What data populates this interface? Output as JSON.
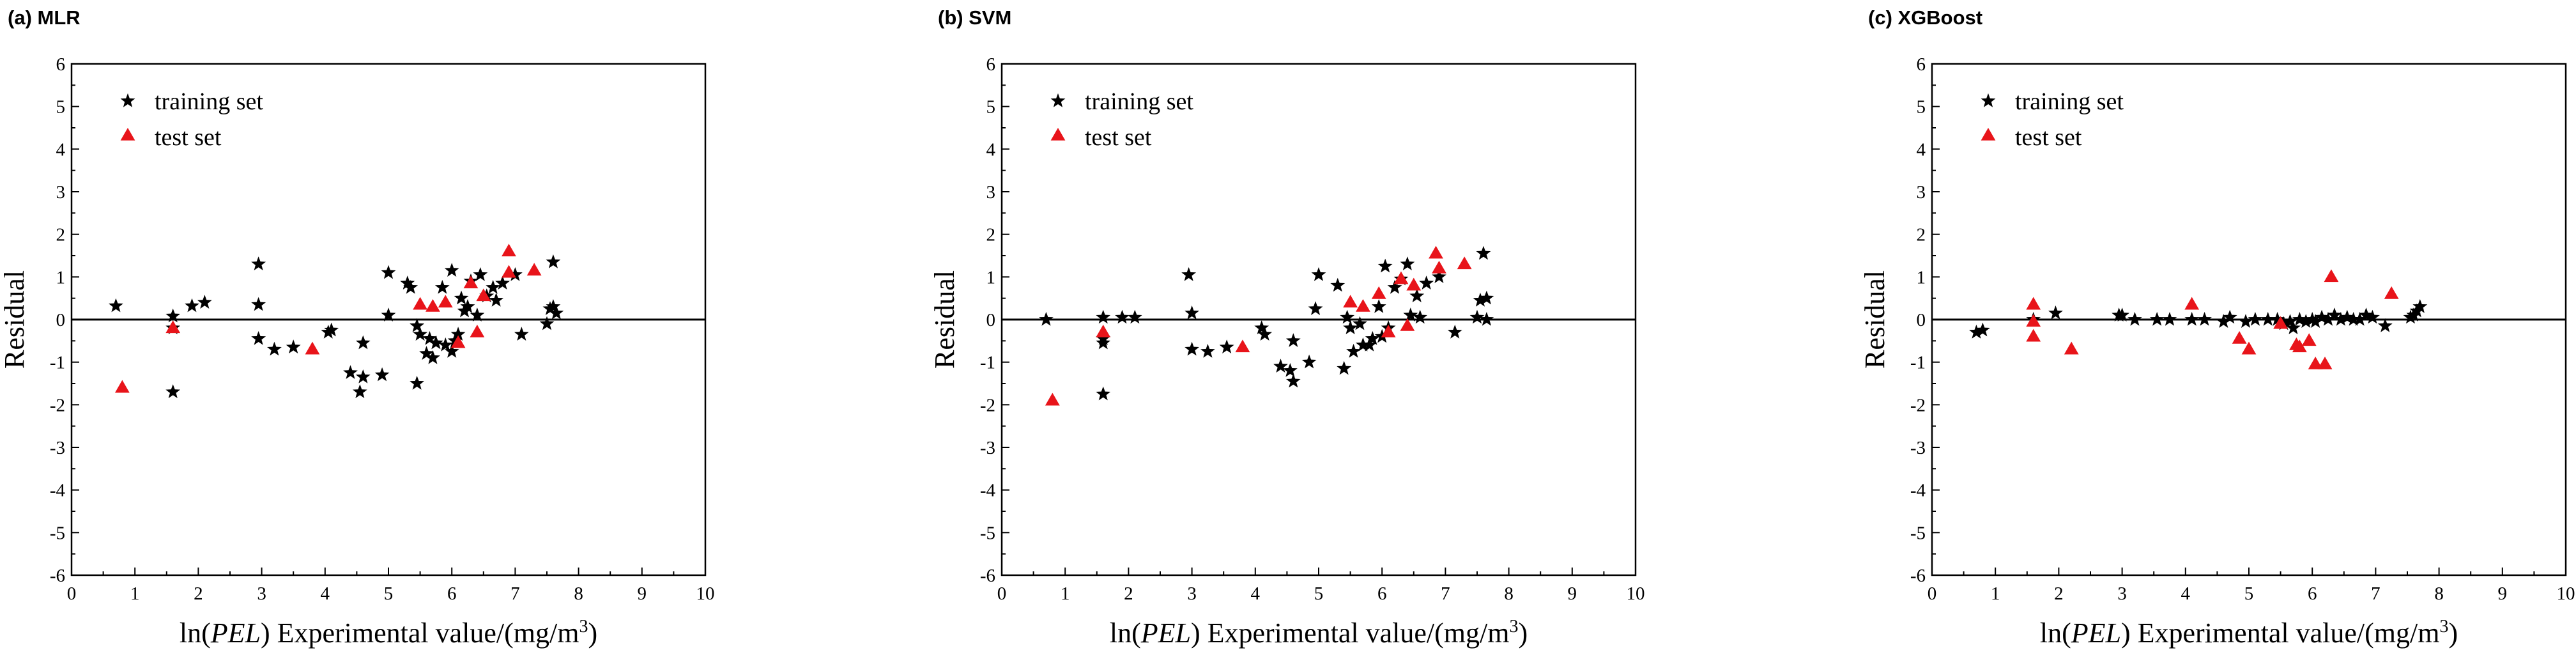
{
  "colors": {
    "training": "#000000",
    "test": "#e8141a"
  },
  "chart_data": [
    {
      "type": "scatter",
      "title": "(a) MLR",
      "xlabel": "ln(PEL) Experimental value/(mg/m3)",
      "ylabel": "Residual",
      "xlim": [
        0,
        10
      ],
      "ylim": [
        -6,
        6
      ],
      "xticks": [
        "0",
        "1",
        "2",
        "3",
        "4",
        "5",
        "6",
        "7",
        "8",
        "9",
        "10"
      ],
      "yticks": [
        "-6",
        "-5",
        "-4",
        "-3",
        "-2",
        "-1",
        "0",
        "1",
        "2",
        "3",
        "4",
        "5",
        "6"
      ],
      "legend": [
        "training set",
        "test set"
      ],
      "series": [
        {
          "name": "training set",
          "marker": "star",
          "points": [
            [
              0.7,
              0.32
            ],
            [
              1.6,
              0.08
            ],
            [
              1.6,
              -0.2
            ],
            [
              1.6,
              -1.7
            ],
            [
              1.9,
              0.32
            ],
            [
              2.1,
              0.4
            ],
            [
              2.95,
              1.3
            ],
            [
              2.95,
              0.35
            ],
            [
              2.95,
              -0.45
            ],
            [
              3.2,
              -0.7
            ],
            [
              3.5,
              -0.65
            ],
            [
              4.05,
              -0.3
            ],
            [
              4.1,
              -0.25
            ],
            [
              4.4,
              -1.25
            ],
            [
              4.55,
              -1.7
            ],
            [
              4.6,
              -0.55
            ],
            [
              4.6,
              -1.35
            ],
            [
              4.9,
              -1.3
            ],
            [
              5.0,
              1.1
            ],
            [
              5.0,
              0.1
            ],
            [
              5.3,
              0.85
            ],
            [
              5.35,
              0.75
            ],
            [
              5.45,
              -0.15
            ],
            [
              5.5,
              -0.35
            ],
            [
              5.45,
              -1.5
            ],
            [
              5.6,
              -0.8
            ],
            [
              5.65,
              -0.45
            ],
            [
              5.7,
              -0.9
            ],
            [
              5.75,
              -0.55
            ],
            [
              5.85,
              0.75
            ],
            [
              5.9,
              -0.6
            ],
            [
              6.0,
              -0.75
            ],
            [
              6.0,
              1.15
            ],
            [
              6.05,
              -0.5
            ],
            [
              6.1,
              -0.35
            ],
            [
              6.15,
              0.5
            ],
            [
              6.2,
              0.2
            ],
            [
              6.25,
              0.3
            ],
            [
              6.3,
              0.9
            ],
            [
              6.4,
              0.1
            ],
            [
              6.45,
              1.05
            ],
            [
              6.55,
              0.55
            ],
            [
              6.65,
              0.75
            ],
            [
              6.7,
              0.45
            ],
            [
              6.8,
              0.85
            ],
            [
              7.0,
              1.05
            ],
            [
              7.1,
              -0.35
            ],
            [
              7.5,
              -0.1
            ],
            [
              7.55,
              0.25
            ],
            [
              7.6,
              1.35
            ],
            [
              7.65,
              0.15
            ],
            [
              7.6,
              0.3
            ]
          ]
        },
        {
          "name": "test set",
          "marker": "triangle",
          "points": [
            [
              0.8,
              -1.6
            ],
            [
              1.6,
              -0.2
            ],
            [
              3.8,
              -0.7
            ],
            [
              5.5,
              0.35
            ],
            [
              5.7,
              0.3
            ],
            [
              5.9,
              0.4
            ],
            [
              6.1,
              -0.55
            ],
            [
              6.3,
              0.85
            ],
            [
              6.4,
              -0.3
            ],
            [
              6.5,
              0.55
            ],
            [
              6.9,
              1.6
            ],
            [
              6.9,
              1.1
            ],
            [
              7.3,
              1.15
            ]
          ]
        }
      ]
    },
    {
      "type": "scatter",
      "title": "(b) SVM",
      "xlabel": "ln(PEL) Experimental value/(mg/m3)",
      "ylabel": "Residual",
      "xlim": [
        0,
        10
      ],
      "ylim": [
        -6,
        6
      ],
      "xticks": [
        "0",
        "1",
        "2",
        "3",
        "4",
        "5",
        "6",
        "7",
        "8",
        "9",
        "10"
      ],
      "yticks": [
        "-6",
        "-5",
        "-4",
        "-3",
        "-2",
        "-1",
        "0",
        "1",
        "2",
        "3",
        "4",
        "5",
        "6"
      ],
      "legend": [
        "training set",
        "test set"
      ],
      "series": [
        {
          "name": "training set",
          "marker": "star",
          "points": [
            [
              0.7,
              0.0
            ],
            [
              1.6,
              0.05
            ],
            [
              1.6,
              -0.45
            ],
            [
              1.6,
              -0.55
            ],
            [
              1.6,
              -1.75
            ],
            [
              1.9,
              0.05
            ],
            [
              2.1,
              0.05
            ],
            [
              2.95,
              1.05
            ],
            [
              3.0,
              0.15
            ],
            [
              3.0,
              -0.7
            ],
            [
              3.25,
              -0.75
            ],
            [
              3.55,
              -0.65
            ],
            [
              4.1,
              -0.2
            ],
            [
              4.15,
              -0.35
            ],
            [
              4.4,
              -1.1
            ],
            [
              4.55,
              -1.2
            ],
            [
              4.6,
              -0.5
            ],
            [
              4.6,
              -1.45
            ],
            [
              4.85,
              -1.0
            ],
            [
              4.95,
              0.25
            ],
            [
              5.0,
              1.05
            ],
            [
              5.3,
              0.8
            ],
            [
              5.4,
              -1.15
            ],
            [
              5.45,
              0.05
            ],
            [
              5.5,
              -0.2
            ],
            [
              5.55,
              -0.75
            ],
            [
              5.65,
              -0.1
            ],
            [
              5.7,
              -0.6
            ],
            [
              5.8,
              -0.6
            ],
            [
              5.85,
              -0.45
            ],
            [
              5.95,
              0.3
            ],
            [
              6.0,
              -0.4
            ],
            [
              6.05,
              1.25
            ],
            [
              6.1,
              -0.2
            ],
            [
              6.2,
              0.75
            ],
            [
              6.3,
              0.95
            ],
            [
              6.4,
              1.3
            ],
            [
              6.45,
              0.1
            ],
            [
              6.55,
              0.55
            ],
            [
              6.6,
              0.05
            ],
            [
              6.7,
              0.85
            ],
            [
              6.9,
              1.0
            ],
            [
              7.15,
              -0.3
            ],
            [
              7.5,
              0.05
            ],
            [
              7.55,
              0.45
            ],
            [
              7.6,
              1.55
            ],
            [
              7.65,
              0.0
            ],
            [
              7.65,
              0.5
            ]
          ]
        },
        {
          "name": "test set",
          "marker": "triangle",
          "points": [
            [
              0.8,
              -1.9
            ],
            [
              1.6,
              -0.3
            ],
            [
              3.8,
              -0.65
            ],
            [
              5.5,
              0.4
            ],
            [
              5.7,
              0.3
            ],
            [
              5.95,
              0.6
            ],
            [
              6.1,
              -0.3
            ],
            [
              6.3,
              0.95
            ],
            [
              6.4,
              -0.15
            ],
            [
              6.5,
              0.8
            ],
            [
              6.85,
              1.55
            ],
            [
              6.9,
              1.2
            ],
            [
              7.3,
              1.3
            ]
          ]
        }
      ]
    },
    {
      "type": "scatter",
      "title": "(c) XGBoost",
      "xlabel": "ln(PEL) Experimental value/(mg/m3)",
      "ylabel": "Residual",
      "xlim": [
        0,
        10
      ],
      "ylim": [
        -6,
        6
      ],
      "xticks": [
        "0",
        "1",
        "2",
        "3",
        "4",
        "5",
        "6",
        "7",
        "8",
        "9",
        "10"
      ],
      "yticks": [
        "-6",
        "-5",
        "-4",
        "-3",
        "-2",
        "-1",
        "0",
        "1",
        "2",
        "3",
        "4",
        "5",
        "6"
      ],
      "legend": [
        "training set",
        "test set"
      ],
      "series": [
        {
          "name": "training set",
          "marker": "star",
          "points": [
            [
              0.7,
              -0.3
            ],
            [
              0.8,
              -0.25
            ],
            [
              1.6,
              0.0
            ],
            [
              1.95,
              0.15
            ],
            [
              2.95,
              0.1
            ],
            [
              3.0,
              0.1
            ],
            [
              3.2,
              0.0
            ],
            [
              3.55,
              0.0
            ],
            [
              3.75,
              0.0
            ],
            [
              4.1,
              0.0
            ],
            [
              4.3,
              0.0
            ],
            [
              4.6,
              -0.05
            ],
            [
              4.7,
              0.05
            ],
            [
              4.95,
              -0.05
            ],
            [
              5.1,
              0.0
            ],
            [
              5.3,
              0.0
            ],
            [
              5.45,
              0.0
            ],
            [
              5.55,
              -0.1
            ],
            [
              5.65,
              -0.05
            ],
            [
              5.7,
              -0.2
            ],
            [
              5.8,
              0.0
            ],
            [
              5.9,
              -0.05
            ],
            [
              6.0,
              0.0
            ],
            [
              6.05,
              -0.05
            ],
            [
              6.15,
              0.05
            ],
            [
              6.25,
              0.0
            ],
            [
              6.35,
              0.1
            ],
            [
              6.45,
              0.0
            ],
            [
              6.55,
              0.05
            ],
            [
              6.65,
              0.0
            ],
            [
              6.75,
              0.0
            ],
            [
              6.85,
              0.1
            ],
            [
              6.95,
              0.05
            ],
            [
              7.15,
              -0.15
            ],
            [
              7.55,
              0.05
            ],
            [
              7.6,
              0.1
            ],
            [
              7.65,
              0.2
            ],
            [
              7.7,
              0.3
            ]
          ]
        },
        {
          "name": "test set",
          "marker": "triangle",
          "points": [
            [
              1.6,
              0.35
            ],
            [
              1.6,
              -0.05
            ],
            [
              1.6,
              -0.4
            ],
            [
              2.2,
              -0.7
            ],
            [
              4.1,
              0.35
            ],
            [
              4.85,
              -0.45
            ],
            [
              5.0,
              -0.7
            ],
            [
              5.5,
              -0.1
            ],
            [
              5.75,
              -0.6
            ],
            [
              5.8,
              -0.65
            ],
            [
              5.95,
              -0.5
            ],
            [
              6.05,
              -1.05
            ],
            [
              6.2,
              -1.05
            ],
            [
              6.3,
              1.0
            ],
            [
              7.25,
              0.6
            ]
          ]
        }
      ]
    }
  ]
}
